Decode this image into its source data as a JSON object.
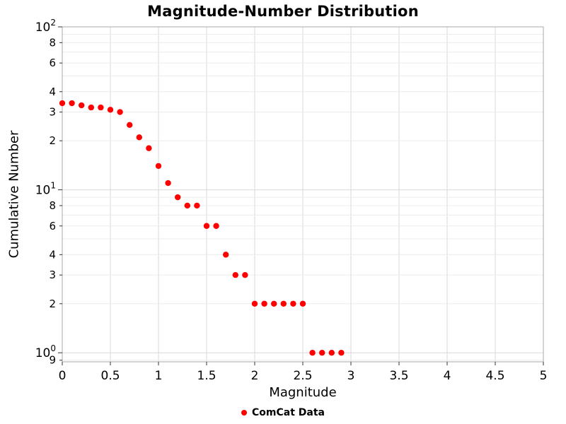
{
  "title": "Magnitude-Number Distribution",
  "axes": {
    "x_label": "Magnitude",
    "y_label": "Cumulative Number"
  },
  "legend": {
    "label": "ComCat Data"
  },
  "colors": {
    "point": "#ff0000",
    "grid_major": "#d9d9d9",
    "grid_minor": "#ececec",
    "frame": "#aaaaaa",
    "tick": "#333333",
    "text": "#000000"
  },
  "chart_data": {
    "type": "scatter",
    "title": "Magnitude-Number Distribution",
    "xlabel": "Magnitude",
    "ylabel": "Cumulative Number",
    "x_range": [
      0,
      5
    ],
    "y_scale": "log",
    "y_range": [
      0.88,
      100
    ],
    "grid": true,
    "legend_position": "bottom",
    "x_ticks": [
      {
        "v": 0,
        "label": "0"
      },
      {
        "v": 0.5,
        "label": "0.5"
      },
      {
        "v": 1,
        "label": "1"
      },
      {
        "v": 1.5,
        "label": "1.5"
      },
      {
        "v": 2,
        "label": "2"
      },
      {
        "v": 2.5,
        "label": "2.5"
      },
      {
        "v": 3,
        "label": "3"
      },
      {
        "v": 3.5,
        "label": "3.5"
      },
      {
        "v": 4,
        "label": "4"
      },
      {
        "v": 4.5,
        "label": "4.5"
      },
      {
        "v": 5,
        "label": "5"
      }
    ],
    "y_major_ticks": [
      {
        "v": 100,
        "base": "10",
        "exp": "2"
      },
      {
        "v": 10,
        "base": "10",
        "exp": "1"
      },
      {
        "v": 1,
        "base": "10",
        "exp": "0"
      }
    ],
    "y_minor_ticks": [
      {
        "v": 80,
        "label": "8"
      },
      {
        "v": 60,
        "label": "6"
      },
      {
        "v": 40,
        "label": "4"
      },
      {
        "v": 30,
        "label": "3"
      },
      {
        "v": 20,
        "label": "2"
      },
      {
        "v": 8,
        "label": "8"
      },
      {
        "v": 6,
        "label": "6"
      },
      {
        "v": 4,
        "label": "4"
      },
      {
        "v": 3,
        "label": "3"
      },
      {
        "v": 2,
        "label": "2"
      },
      {
        "v": 0.9,
        "label": "9"
      }
    ],
    "series": [
      {
        "name": "ComCat Data",
        "color": "#ff0000",
        "x": [
          0.0,
          0.1,
          0.2,
          0.3,
          0.4,
          0.5,
          0.6,
          0.7,
          0.8,
          0.9,
          1.0,
          1.1,
          1.2,
          1.3,
          1.4,
          1.5,
          1.6,
          1.7,
          1.8,
          1.9,
          2.0,
          2.1,
          2.2,
          2.3,
          2.4,
          2.5,
          2.6,
          2.7,
          2.8,
          2.9
        ],
        "y": [
          34,
          34,
          33,
          32,
          32,
          31,
          30,
          25,
          21,
          18,
          14,
          11,
          9,
          8,
          8,
          6,
          6,
          4,
          3,
          3,
          2,
          2,
          2,
          2,
          2,
          2,
          1,
          1,
          1,
          1
        ]
      }
    ]
  }
}
